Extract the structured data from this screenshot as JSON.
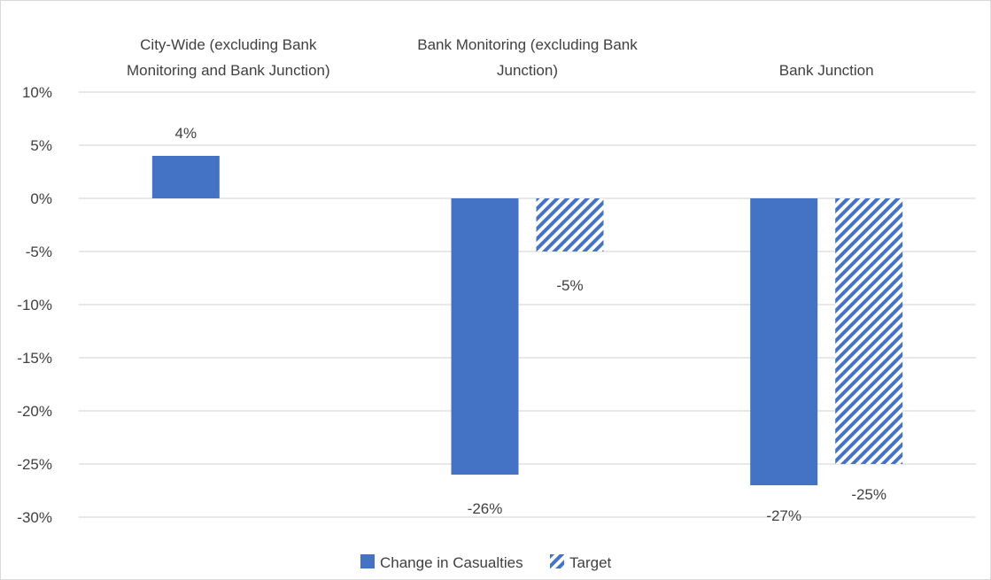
{
  "chart_data": {
    "type": "bar",
    "categories": [
      [
        "City-Wide (excluding Bank",
        "Monitoring and Bank Junction)"
      ],
      [
        "Bank Monitoring (excluding Bank",
        "Junction)"
      ],
      [
        "Bank Junction"
      ]
    ],
    "series": [
      {
        "name": "Change in Casualties",
        "values": [
          4,
          -26,
          -27
        ],
        "labels": [
          "4%",
          "-26%",
          "-27%"
        ],
        "color": "#4472c4",
        "pattern": "solid"
      },
      {
        "name": "Target",
        "values": [
          null,
          -5,
          -25
        ],
        "labels": [
          null,
          "-5%",
          "-25%"
        ],
        "color": "#4472c4",
        "pattern": "diagonal-stripes"
      }
    ],
    "ylim": [
      -30,
      10
    ],
    "yticks": [
      10,
      5,
      0,
      -5,
      -10,
      -15,
      -20,
      -25,
      -30
    ],
    "ytick_labels": [
      "10%",
      "5%",
      "0%",
      "-5%",
      "-10%",
      "-15%",
      "-20%",
      "-25%",
      "-30%"
    ],
    "grid": true,
    "category_labels_position": "top",
    "legend_position": "bottom"
  }
}
